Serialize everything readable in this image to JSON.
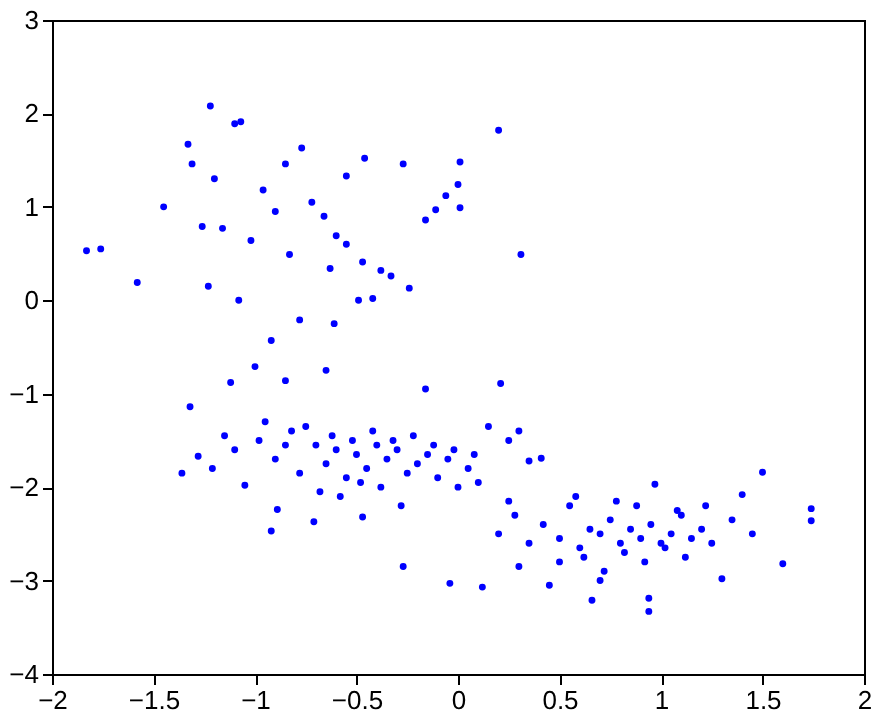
{
  "chart_data": {
    "type": "scatter",
    "marker": "circle",
    "grid": false,
    "xlim": [
      -2,
      2
    ],
    "xticks": [
      -2,
      -1.5,
      -1,
      -0.5,
      0,
      0.5,
      1,
      1.5,
      2
    ],
    "ylim": [
      -4,
      3
    ],
    "yticks": [
      -4,
      -3,
      -2,
      -1,
      0,
      1,
      2,
      3
    ],
    "series": [
      {
        "color": "#0000ff",
        "x": [
          -1.83,
          -1.76,
          -1.58,
          -1.22,
          -1.33,
          -1.31,
          -1.1,
          -1.07,
          -1.45,
          -1.26,
          -1.23,
          -0.96,
          -0.77,
          -0.55,
          -0.46,
          -0.66,
          -0.83,
          -1.02,
          -0.92,
          -0.78,
          -0.63,
          -0.49,
          -0.61,
          -0.47,
          -0.42,
          -0.33,
          -0.27,
          -0.16,
          -0.24,
          -0.11,
          0.0,
          0.01,
          0.2,
          0.01,
          -0.06,
          0.31,
          -1.16,
          -0.85,
          -1.08,
          -0.38,
          -0.6,
          -0.72,
          -0.9,
          -0.55,
          -1.2,
          -1.0,
          -1.12,
          -1.32,
          -1.36,
          -1.28,
          -1.21,
          -1.05,
          -0.92,
          -0.89,
          -0.71,
          -0.47,
          -0.27,
          -0.04,
          0.12,
          -0.65,
          -0.85,
          -0.16,
          0.21,
          -1.15,
          -1.1,
          -0.98,
          -0.9,
          -0.82,
          -0.78,
          -0.7,
          -0.65,
          -0.6,
          -0.55,
          -0.5,
          -0.45,
          -0.4,
          -0.35,
          -0.3,
          -0.25,
          -0.2,
          -0.15,
          -0.1,
          -0.05,
          0.0,
          0.05,
          0.1,
          -0.95,
          -0.85,
          -0.75,
          -0.62,
          -0.52,
          -0.42,
          -0.32,
          -0.22,
          -0.12,
          -0.02,
          0.08,
          0.15,
          0.25,
          0.3,
          -0.68,
          -0.58,
          -0.48,
          -0.38,
          -0.28,
          1.5,
          1.74,
          1.74,
          1.6,
          0.94,
          0.94,
          0.66,
          0.45,
          1.3,
          1.4,
          0.97,
          0.41,
          0.35,
          0.2,
          0.28,
          0.35,
          0.42,
          0.5,
          0.55,
          0.6,
          0.65,
          0.7,
          0.75,
          0.8,
          0.85,
          0.9,
          0.95,
          1.0,
          1.05,
          1.1,
          1.15,
          1.2,
          1.25,
          1.35,
          1.45,
          0.3,
          0.5,
          0.62,
          0.72,
          0.82,
          0.92,
          1.02,
          1.12,
          0.58,
          0.78,
          0.88,
          0.7,
          1.08,
          1.22,
          0.25
        ],
        "values": [
          0.53,
          0.55,
          0.19,
          2.08,
          1.67,
          1.46,
          1.89,
          1.91,
          1.0,
          0.79,
          0.15,
          1.18,
          1.63,
          1.33,
          1.52,
          0.9,
          0.49,
          0.64,
          -0.43,
          -0.21,
          0.34,
          0.0,
          -0.25,
          0.41,
          0.02,
          0.26,
          1.46,
          0.86,
          0.13,
          0.97,
          1.24,
          0.99,
          1.82,
          1.48,
          1.12,
          0.49,
          0.77,
          1.46,
          0.0,
          0.32,
          0.69,
          1.05,
          0.95,
          0.6,
          1.3,
          -0.71,
          -0.88,
          -1.14,
          -1.85,
          -1.67,
          -1.8,
          -1.98,
          -2.47,
          -2.24,
          -2.37,
          -2.32,
          -2.85,
          -3.03,
          -3.07,
          -0.75,
          -0.86,
          -0.95,
          -0.89,
          -1.45,
          -1.6,
          -1.5,
          -1.7,
          -1.4,
          -1.85,
          -1.55,
          -1.75,
          -1.6,
          -1.9,
          -1.65,
          -1.8,
          -1.55,
          -1.7,
          -1.6,
          -1.85,
          -1.75,
          -1.65,
          -1.9,
          -1.7,
          -2.0,
          -1.8,
          -1.95,
          -1.3,
          -1.55,
          -1.35,
          -1.45,
          -1.5,
          -1.4,
          -1.5,
          -1.45,
          -1.55,
          -1.6,
          -1.65,
          -1.35,
          -1.5,
          -1.4,
          -2.05,
          -2.1,
          -1.95,
          -2.0,
          -2.2,
          -1.84,
          -2.23,
          -2.36,
          -2.82,
          -3.33,
          -3.19,
          -3.21,
          -3.05,
          -2.98,
          -2.08,
          -1.97,
          -1.69,
          -1.72,
          -2.5,
          -2.3,
          -2.6,
          -2.4,
          -2.55,
          -2.2,
          -2.65,
          -2.45,
          -2.5,
          -2.35,
          -2.6,
          -2.45,
          -2.55,
          -2.4,
          -2.6,
          -2.5,
          -2.3,
          -2.55,
          -2.45,
          -2.6,
          -2.35,
          -2.5,
          -2.85,
          -2.8,
          -2.75,
          -2.9,
          -2.7,
          -2.8,
          -2.65,
          -2.75,
          -2.1,
          -2.15,
          -2.2,
          -3.0,
          -2.25,
          -2.2,
          -2.15
        ]
      }
    ]
  }
}
